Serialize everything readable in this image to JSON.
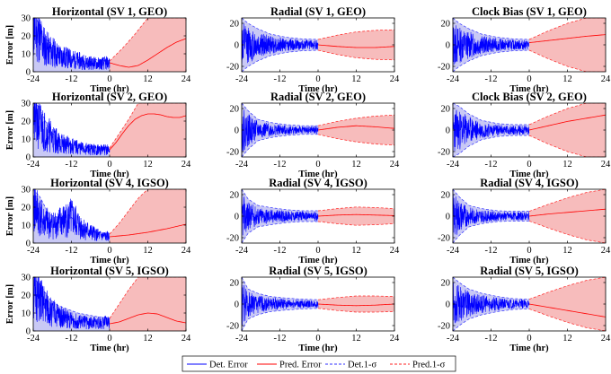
{
  "colors": {
    "det_fill": "#c9c9f5",
    "pred_fill": "#f7bcbc",
    "det_line": "#0000ff",
    "pred_line": "#ff0000",
    "det_sigma": "#3030ff",
    "pred_sigma": "#ff2020"
  },
  "legend": {
    "det_error": "Det. Error",
    "pred_error": "Pred. Error",
    "det_sigma": "Det.1-σ",
    "pred_sigma": "Pred.1-σ"
  },
  "chart_data": [
    {
      "type": "line",
      "title": "Horizontal (SV 1, GEO)",
      "xlabel": "Time (hr)",
      "ylabel": "Error [m]",
      "xlim": [
        -24,
        24
      ],
      "ylim": [
        0,
        30
      ],
      "xticks": [
        -24,
        -12,
        0,
        12,
        24
      ],
      "yticks": [
        0,
        10,
        20,
        30
      ],
      "kind": "horiz",
      "seed": 11,
      "det_sigma_x": [
        -24,
        -23,
        -21,
        -18,
        -14,
        -10,
        -6,
        -3,
        0
      ],
      "det_sigma": [
        30,
        30,
        20,
        15,
        10,
        8,
        7,
        6.5,
        6
      ],
      "det_error_x": [
        -24,
        -20,
        -16,
        -12,
        -8,
        -4,
        0
      ],
      "det_error": [
        25,
        13,
        9,
        7,
        5.5,
        4.5,
        5
      ],
      "pred_sigma_x": [
        0,
        4,
        8,
        12,
        16,
        20,
        24
      ],
      "pred_sigma": [
        6,
        13,
        21,
        30,
        30,
        30,
        30
      ],
      "pred_error_x": [
        0,
        3,
        6,
        9,
        12,
        15,
        18,
        21,
        24
      ],
      "pred_error": [
        5,
        3.5,
        2.5,
        3.5,
        6.5,
        10,
        13.5,
        16.5,
        18.5
      ]
    },
    {
      "type": "line",
      "title": "Radial (SV 1, GEO)",
      "xlabel": "Time (hr)",
      "ylabel": "",
      "xlim": [
        -24,
        24
      ],
      "ylim": [
        -25,
        25
      ],
      "xticks": [
        -24,
        -12,
        0,
        12,
        24
      ],
      "yticks": [
        -20,
        0,
        20
      ],
      "kind": "sym",
      "seed": 12,
      "det_sigma_x": [
        -24,
        -22,
        -19,
        -15,
        -10,
        -5,
        0
      ],
      "det_sigma": [
        25,
        20,
        15,
        10,
        7,
        5.5,
        5
      ],
      "det_error_x": [
        -24,
        -18,
        -12,
        -6,
        0
      ],
      "det_error": [
        0,
        0,
        0,
        0,
        0
      ],
      "pred_sigma_x": [
        0,
        6,
        12,
        18,
        24
      ],
      "pred_sigma": [
        5,
        9,
        12,
        13.5,
        14
      ],
      "pred_error_x": [
        0,
        6,
        12,
        18,
        24
      ],
      "pred_error": [
        0,
        -1.5,
        -2.5,
        -2.5,
        -1.5
      ]
    },
    {
      "type": "line",
      "title": "Clock Bias (SV 1, GEO)",
      "xlabel": "Time (hr)",
      "ylabel": "",
      "xlim": [
        -24,
        24
      ],
      "ylim": [
        -25,
        25
      ],
      "xticks": [
        -24,
        -12,
        0,
        12,
        24
      ],
      "yticks": [
        -20,
        0,
        20
      ],
      "kind": "sym",
      "seed": 13,
      "det_sigma_x": [
        -24,
        -22,
        -19,
        -15,
        -10,
        -5,
        0
      ],
      "det_sigma": [
        25,
        20,
        15,
        10,
        7,
        5.5,
        5
      ],
      "det_error_x": [
        -24,
        -18,
        -12,
        -6,
        0
      ],
      "det_error": [
        0,
        0,
        0,
        0,
        0
      ],
      "pred_sigma_x": [
        0,
        6,
        12,
        18,
        24
      ],
      "pred_sigma": [
        5,
        13,
        20,
        25,
        25
      ],
      "pred_error_x": [
        0,
        6,
        12,
        18,
        24
      ],
      "pred_error": [
        2,
        4,
        6,
        8,
        9.5
      ]
    },
    {
      "type": "line",
      "title": "Horizontal (SV 2, GEO)",
      "xlabel": "Time (hr)",
      "ylabel": "Error [m]",
      "xlim": [
        -24,
        24
      ],
      "ylim": [
        0,
        30
      ],
      "xticks": [
        -24,
        -12,
        0,
        12,
        24
      ],
      "yticks": [
        0,
        10,
        20,
        30
      ],
      "kind": "horiz",
      "seed": 21,
      "det_sigma_x": [
        -24,
        -22,
        -19,
        -16,
        -12,
        -8,
        -4,
        0
      ],
      "det_sigma": [
        30,
        28,
        15,
        10,
        7,
        6,
        5.5,
        5
      ],
      "det_error_x": [
        -24,
        -20,
        -16,
        -12,
        -8,
        -4,
        0
      ],
      "det_error": [
        22,
        14,
        8,
        6,
        4.5,
        4,
        4
      ],
      "pred_sigma_x": [
        0,
        3,
        6,
        9,
        12,
        24
      ],
      "pred_sigma": [
        5,
        13,
        21,
        30,
        30,
        30
      ],
      "pred_error_x": [
        0,
        2,
        4,
        6,
        8,
        10,
        12,
        14,
        16,
        18,
        20,
        22,
        24
      ],
      "pred_error": [
        4,
        8,
        13,
        17.5,
        21,
        23,
        24,
        24,
        23.5,
        22.5,
        22,
        22,
        23
      ]
    },
    {
      "type": "line",
      "title": "Radial (SV 2, GEO)",
      "xlabel": "Time (hr)",
      "ylabel": "",
      "xlim": [
        -24,
        24
      ],
      "ylim": [
        -25,
        25
      ],
      "xticks": [
        -24,
        -12,
        0,
        12,
        24
      ],
      "yticks": [
        -20,
        0,
        20
      ],
      "kind": "sym",
      "seed": 22,
      "det_sigma_x": [
        -24,
        -22,
        -19,
        -15,
        -10,
        -5,
        0
      ],
      "det_sigma": [
        25,
        18,
        10,
        7,
        5,
        4,
        4
      ],
      "det_error_x": [
        -24,
        -18,
        -12,
        -6,
        0
      ],
      "det_error": [
        0,
        0,
        0,
        0,
        0
      ],
      "pred_sigma_x": [
        0,
        6,
        12,
        18,
        24
      ],
      "pred_sigma": [
        4,
        8,
        11,
        13,
        14
      ],
      "pred_error_x": [
        0,
        6,
        12,
        18,
        24
      ],
      "pred_error": [
        0,
        2.5,
        4,
        3,
        1.5
      ]
    },
    {
      "type": "line",
      "title": "Clock Bias (SV 2, GEO)",
      "xlabel": "Time (hr)",
      "ylabel": "",
      "xlim": [
        -24,
        24
      ],
      "ylim": [
        -25,
        25
      ],
      "xticks": [
        -24,
        -12,
        0,
        12,
        24
      ],
      "yticks": [
        -20,
        0,
        20
      ],
      "kind": "sym",
      "seed": 23,
      "det_sigma_x": [
        -24,
        -22,
        -19,
        -15,
        -10,
        -5,
        0
      ],
      "det_sigma": [
        25,
        22,
        15,
        9,
        6,
        5,
        5
      ],
      "det_error_x": [
        -24,
        -18,
        -12,
        -6,
        0
      ],
      "det_error": [
        0,
        0,
        0,
        0,
        0
      ],
      "pred_sigma_x": [
        0,
        6,
        12,
        18,
        24
      ],
      "pred_sigma": [
        5,
        13,
        20,
        25,
        25
      ],
      "pred_error_x": [
        0,
        6,
        12,
        18,
        24
      ],
      "pred_error": [
        0,
        4,
        8,
        11,
        14
      ]
    },
    {
      "type": "line",
      "title": "Horizontal (SV 4, IGSO)",
      "xlabel": "Time (hr)",
      "ylabel": "Error [m]",
      "xlim": [
        -24,
        24
      ],
      "ylim": [
        0,
        30
      ],
      "xticks": [
        -24,
        -12,
        0,
        12,
        24
      ],
      "yticks": [
        0,
        10,
        20,
        30
      ],
      "kind": "horiz",
      "seed": 41,
      "det_sigma_x": [
        -24,
        -22,
        -19,
        -16,
        -13,
        -10,
        -7,
        -4,
        0
      ],
      "det_sigma": [
        30,
        26,
        16,
        14,
        16,
        11,
        8,
        6,
        5
      ],
      "det_error_x": [
        -24,
        -21,
        -18,
        -15,
        -12,
        -9,
        -6,
        -3,
        0
      ],
      "det_error": [
        22,
        12,
        10,
        12,
        14,
        9,
        6,
        4,
        3.5
      ],
      "pred_sigma_x": [
        0,
        3,
        6,
        9,
        12,
        24
      ],
      "pred_sigma": [
        5,
        11,
        18,
        25,
        30,
        30
      ],
      "pred_error_x": [
        0,
        6,
        12,
        18,
        24
      ],
      "pred_error": [
        3.5,
        4.5,
        6,
        8,
        10.5
      ]
    },
    {
      "type": "line",
      "title": "Radial (SV 4, IGSO)",
      "xlabel": "Time (hr)",
      "ylabel": "",
      "xlim": [
        -24,
        24
      ],
      "ylim": [
        -25,
        25
      ],
      "xticks": [
        -24,
        -12,
        0,
        12,
        24
      ],
      "yticks": [
        -20,
        0,
        20
      ],
      "kind": "sym",
      "seed": 42,
      "det_sigma_x": [
        -24,
        -22,
        -19,
        -15,
        -10,
        -5,
        0
      ],
      "det_sigma": [
        25,
        16,
        10,
        8,
        6,
        5,
        5
      ],
      "det_error_x": [
        -24,
        -18,
        -12,
        -6,
        0
      ],
      "det_error": [
        0,
        0,
        0,
        0,
        0
      ],
      "pred_sigma_x": [
        0,
        6,
        12,
        18,
        24
      ],
      "pred_sigma": [
        5,
        7,
        8.5,
        8,
        7
      ],
      "pred_error_x": [
        0,
        6,
        12,
        18,
        24
      ],
      "pred_error": [
        0,
        1,
        1.5,
        1,
        0.5
      ]
    },
    {
      "type": "line",
      "title": "Radial (SV 4, IGSO)",
      "xlabel": "Time (hr)",
      "ylabel": "",
      "xlim": [
        -24,
        24
      ],
      "ylim": [
        -25,
        25
      ],
      "xticks": [
        -24,
        -12,
        0,
        12,
        24
      ],
      "yticks": [
        -20,
        0,
        20
      ],
      "kind": "sym",
      "seed": 43,
      "det_sigma_x": [
        -24,
        -22,
        -19,
        -15,
        -10,
        -5,
        0
      ],
      "det_sigma": [
        25,
        18,
        10,
        7,
        5,
        4.5,
        4.5
      ],
      "det_error_x": [
        -24,
        -18,
        -12,
        -6,
        0
      ],
      "det_error": [
        0,
        0,
        0,
        0,
        0
      ],
      "pred_sigma_x": [
        0,
        6,
        12,
        18,
        24
      ],
      "pred_sigma": [
        4.5,
        11,
        17,
        22,
        25
      ],
      "pred_error_x": [
        0,
        6,
        12,
        18,
        24
      ],
      "pred_error": [
        0,
        2,
        3.5,
        5,
        6.5
      ]
    },
    {
      "type": "line",
      "title": "Horizontal (SV 5, IGSO)",
      "xlabel": "Time (hr)",
      "ylabel": "Error [m]",
      "xlim": [
        -24,
        24
      ],
      "ylim": [
        0,
        30
      ],
      "xticks": [
        -24,
        -12,
        0,
        12,
        24
      ],
      "yticks": [
        0,
        10,
        20,
        30
      ],
      "kind": "horiz",
      "seed": 51,
      "det_sigma_x": [
        -24,
        -22,
        -19,
        -16,
        -13,
        -10,
        -7,
        -4,
        0
      ],
      "det_sigma": [
        30,
        26,
        18,
        14,
        12,
        10,
        9,
        8,
        7
      ],
      "det_error_x": [
        -24,
        -21,
        -18,
        -15,
        -12,
        -9,
        -6,
        -3,
        0
      ],
      "det_error": [
        22,
        15,
        10,
        8,
        6,
        5,
        4.5,
        4.5,
        5
      ],
      "pred_sigma_x": [
        0,
        3,
        6,
        9,
        24
      ],
      "pred_sigma": [
        7,
        15,
        23,
        30,
        30
      ],
      "pred_error_x": [
        0,
        3,
        6,
        9,
        12,
        15,
        18,
        21,
        24
      ],
      "pred_error": [
        4,
        5,
        7,
        9,
        10,
        9.5,
        7.5,
        5.5,
        4.5
      ]
    },
    {
      "type": "line",
      "title": "Radial (SV 5, IGSO)",
      "xlabel": "Time (hr)",
      "ylabel": "",
      "xlim": [
        -24,
        24
      ],
      "ylim": [
        -25,
        25
      ],
      "xticks": [
        -24,
        -12,
        0,
        12,
        24
      ],
      "yticks": [
        -20,
        0,
        20
      ],
      "kind": "sym",
      "seed": 52,
      "det_sigma_x": [
        -24,
        -22,
        -19,
        -15,
        -10,
        -5,
        0
      ],
      "det_sigma": [
        25,
        14,
        10,
        7,
        5.5,
        4.5,
        4
      ],
      "det_error_x": [
        -24,
        -18,
        -12,
        -6,
        0
      ],
      "det_error": [
        0,
        0,
        0,
        0,
        0
      ],
      "pred_sigma_x": [
        0,
        6,
        12,
        18,
        24
      ],
      "pred_sigma": [
        4,
        6,
        7.5,
        7.5,
        7
      ],
      "pred_error_x": [
        0,
        6,
        12,
        18,
        24
      ],
      "pred_error": [
        0,
        -1,
        -1.5,
        -1,
        0
      ]
    },
    {
      "type": "line",
      "title": "Radial (SV 5, IGSO)",
      "xlabel": "Time (hr)",
      "ylabel": "",
      "xlim": [
        -24,
        24
      ],
      "ylim": [
        -25,
        25
      ],
      "xticks": [
        -24,
        -12,
        0,
        12,
        24
      ],
      "yticks": [
        -20,
        0,
        20
      ],
      "kind": "sym",
      "seed": 53,
      "det_sigma_x": [
        -24,
        -22,
        -19,
        -15,
        -10,
        -5,
        0
      ],
      "det_sigma": [
        25,
        20,
        14,
        10,
        7,
        5,
        4.5
      ],
      "det_error_x": [
        -24,
        -18,
        -12,
        -6,
        0
      ],
      "det_error": [
        0,
        0,
        0,
        0,
        0
      ],
      "pred_sigma_x": [
        0,
        6,
        12,
        18,
        24
      ],
      "pred_sigma": [
        4.5,
        11,
        17,
        22,
        25
      ],
      "pred_error_x": [
        0,
        6,
        12,
        18,
        24
      ],
      "pred_error": [
        0,
        -3,
        -6,
        -9,
        -12
      ]
    }
  ]
}
